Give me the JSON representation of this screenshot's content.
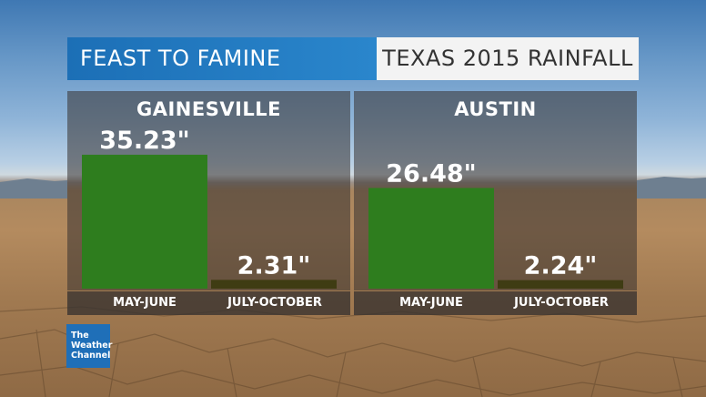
{
  "header": {
    "left_title": "FEAST TO FAMINE",
    "right_title": "TEXAS 2015 RAINFALL"
  },
  "logo": {
    "lines": [
      "The",
      "Weather",
      "Channel"
    ]
  },
  "colors": {
    "bar_wet": "#2e7d1e",
    "bar_dry": "#3f3c13",
    "title_blue": "#1f75bd"
  },
  "chart_data": [
    {
      "type": "bar",
      "title": "GAINESVILLE",
      "categories": [
        "MAY-JUNE",
        "JULY-OCTOBER"
      ],
      "values": [
        35.23,
        2.31
      ],
      "value_labels": [
        "35.23\"",
        "2.31\""
      ],
      "ylim": [
        0,
        40
      ]
    },
    {
      "type": "bar",
      "title": "AUSTIN",
      "categories": [
        "MAY-JUNE",
        "JULY-OCTOBER"
      ],
      "values": [
        26.48,
        2.24
      ],
      "value_labels": [
        "26.48\"",
        "2.24\""
      ],
      "ylim": [
        0,
        40
      ]
    }
  ]
}
